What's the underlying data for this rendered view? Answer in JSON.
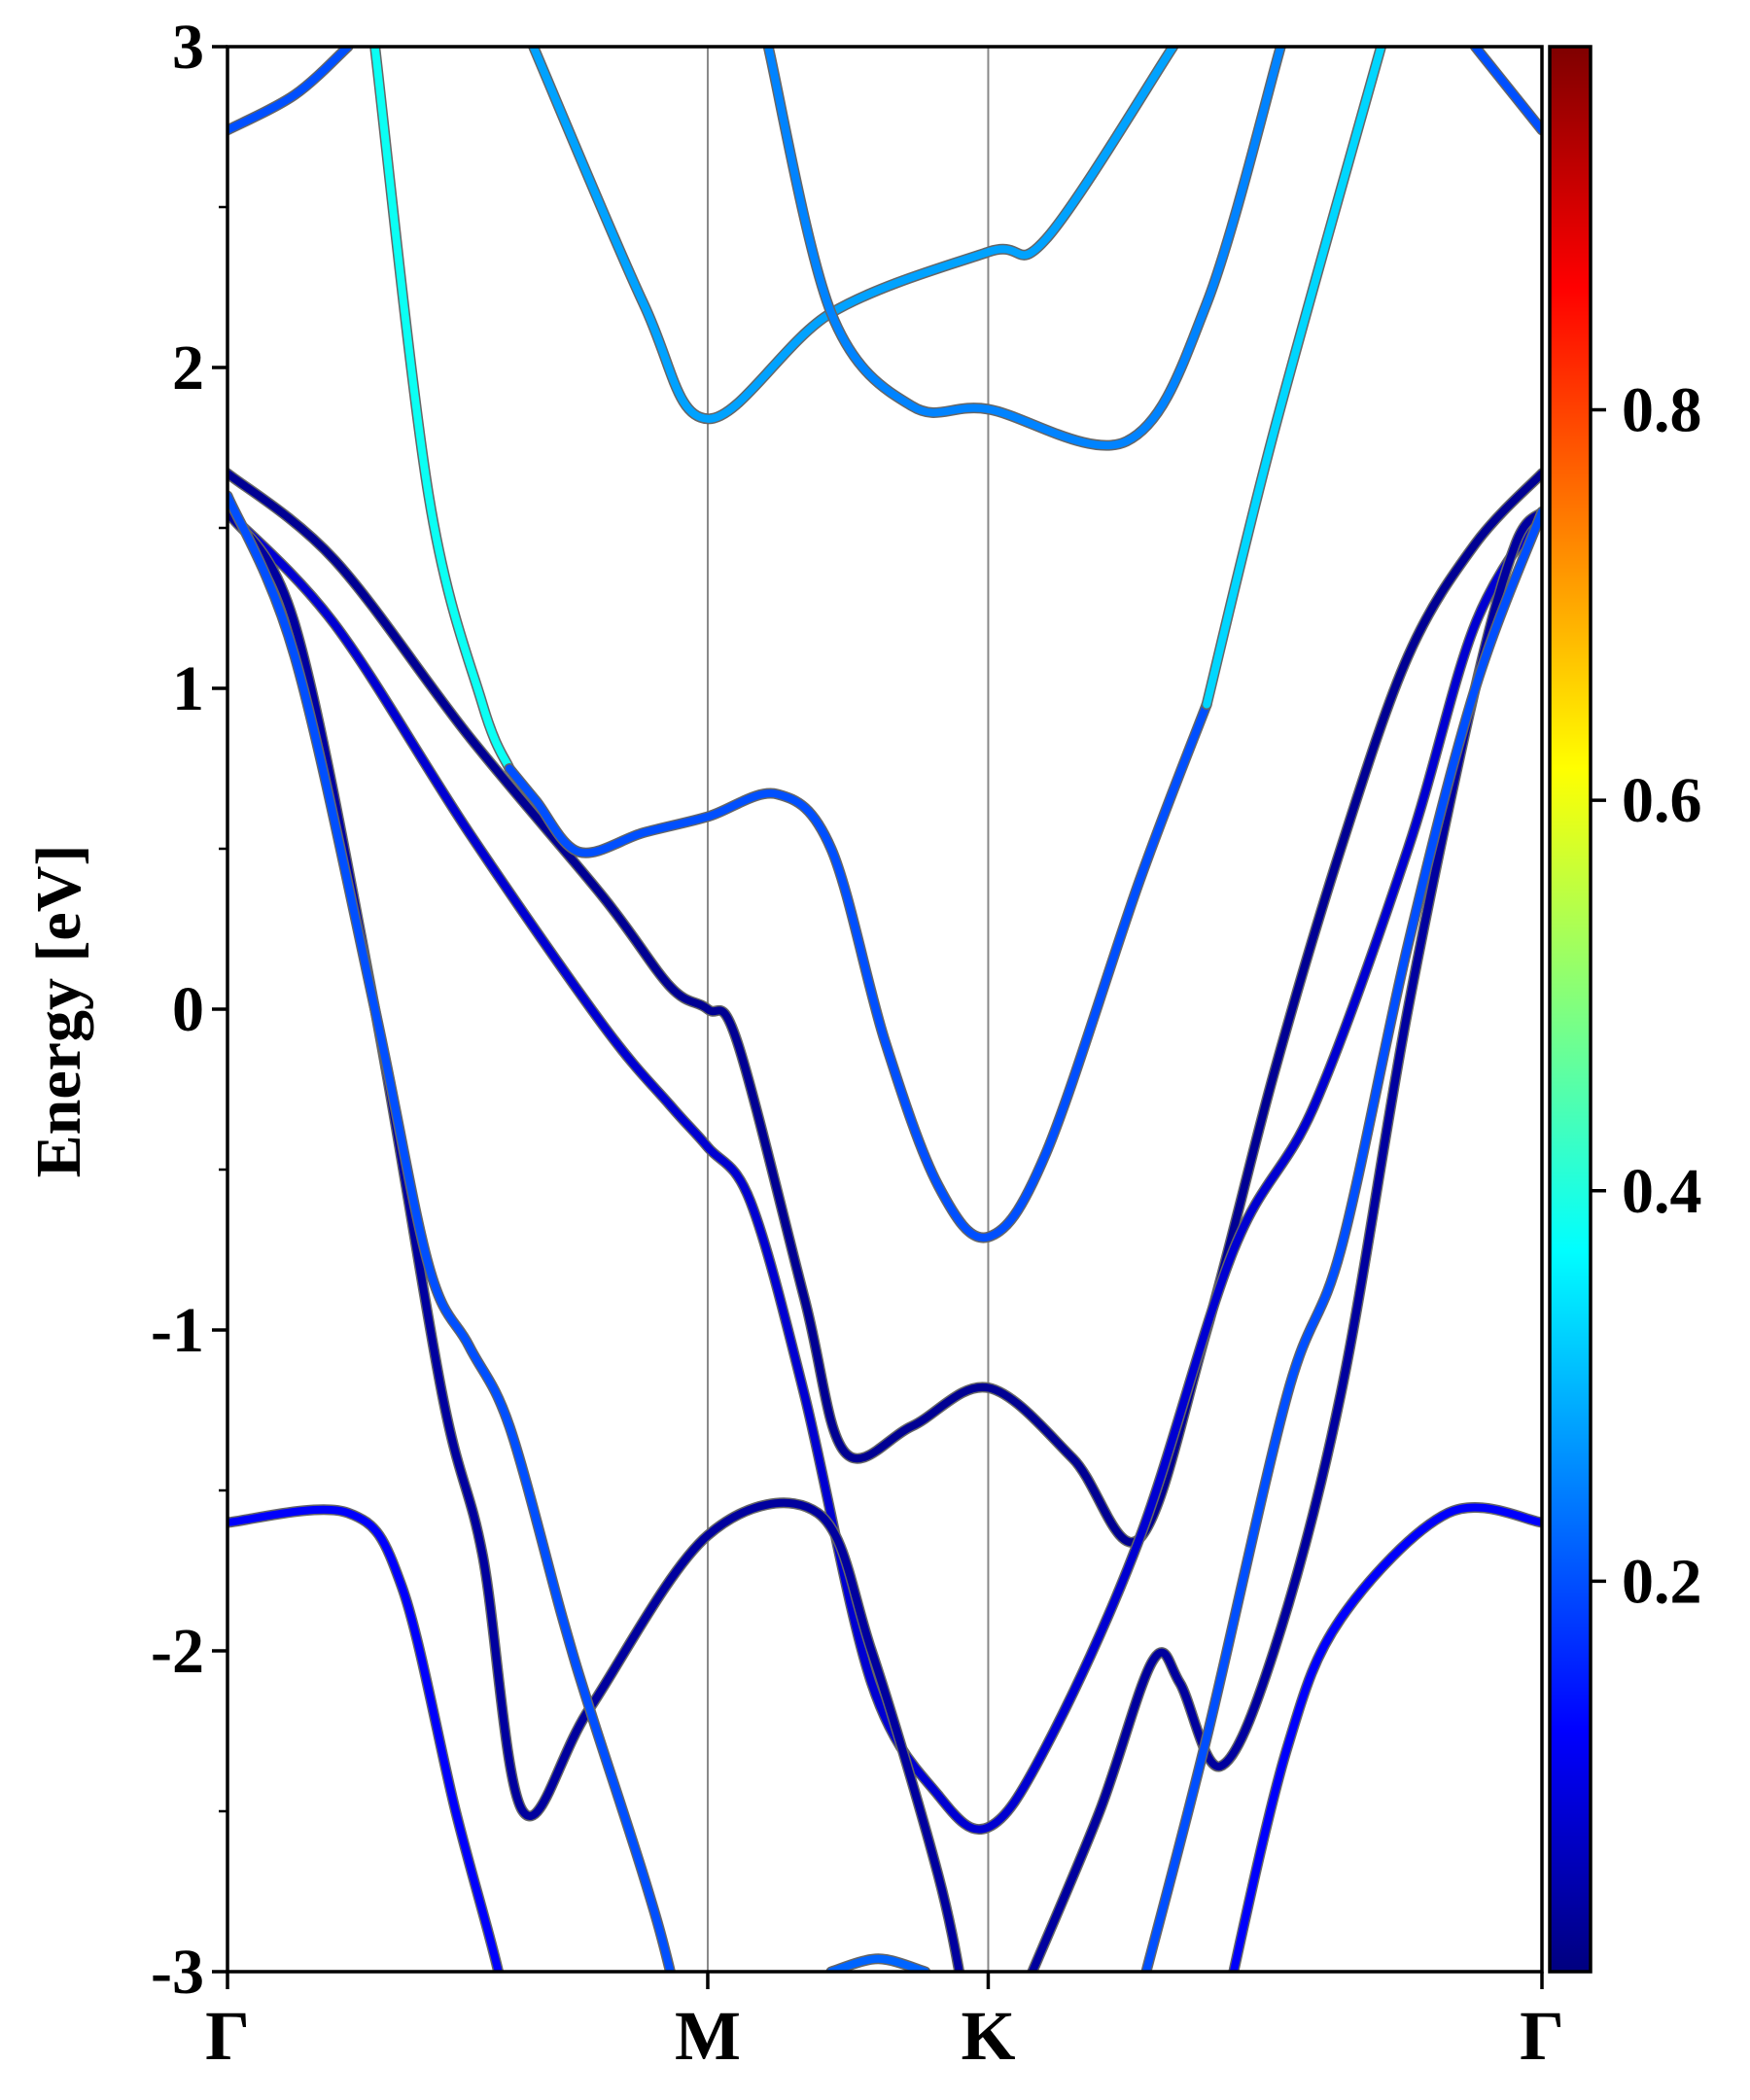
{
  "chart_data": {
    "type": "line",
    "title": "",
    "xlabel": "",
    "ylabel": "Energy [eV]",
    "ylim": [
      -3,
      3
    ],
    "xlim": [
      0,
      2.737
    ],
    "yticks": [
      "3",
      "2",
      "1",
      "0",
      "-1",
      "-2",
      "-3"
    ],
    "ytick_values": [
      3,
      2,
      1,
      0,
      -1,
      -2,
      -3
    ],
    "high_symmetry_points": [
      {
        "label": "Γ",
        "k": 0
      },
      {
        "label": "M",
        "k": 1.0
      },
      {
        "label": "K",
        "k": 1.584
      },
      {
        "label": "Γ",
        "k": 2.737
      }
    ],
    "colorbar": {
      "colormap": "jet",
      "range": [
        0,
        0.986
      ],
      "ticks": [
        "0.2",
        "0.4",
        "0.6",
        "0.8"
      ],
      "tick_values": [
        0.2,
        0.4,
        0.6,
        0.8
      ]
    },
    "series": [
      {
        "name": "band-1",
        "weight": 0.02,
        "points": [
          [
            0,
            1.67
          ],
          [
            0.223,
            1.4
          ],
          [
            0.503,
            0.85
          ],
          [
            0.782,
            0.35
          ],
          [
            0.922,
            0.07
          ],
          [
            1.0,
            0.0
          ],
          [
            1.061,
            -0.1
          ],
          [
            1.201,
            -0.9
          ],
          [
            1.285,
            -1.38
          ],
          [
            1.425,
            -1.3
          ],
          [
            1.584,
            -1.18
          ],
          [
            1.76,
            -1.4
          ],
          [
            1.899,
            -1.65
          ],
          [
            2.039,
            -1.0
          ],
          [
            2.179,
            -0.2
          ],
          [
            2.318,
            0.5
          ],
          [
            2.458,
            1.1
          ],
          [
            2.598,
            1.45
          ],
          [
            2.737,
            1.67
          ]
        ]
      },
      {
        "name": "band-2",
        "weight": 0.08,
        "points": [
          [
            0,
            1.55
          ],
          [
            0.223,
            1.2
          ],
          [
            0.503,
            0.55
          ],
          [
            0.782,
            -0.05
          ],
          [
            0.922,
            -0.3
          ],
          [
            1.0,
            -0.43
          ],
          [
            1.089,
            -0.6
          ],
          [
            1.201,
            -1.2
          ],
          [
            1.341,
            -2.1
          ],
          [
            1.48,
            -2.45
          ],
          [
            1.584,
            -2.55
          ],
          [
            1.704,
            -2.3
          ],
          [
            1.899,
            -1.65
          ],
          [
            2.095,
            -0.75
          ],
          [
            2.263,
            -0.3
          ],
          [
            2.458,
            0.5
          ],
          [
            2.598,
            1.2
          ],
          [
            2.737,
            1.55
          ]
        ]
      },
      {
        "name": "band-3",
        "weight": 0.03,
        "points": [
          [
            0,
            1.55
          ],
          [
            0.14,
            1.2
          ],
          [
            0.307,
            0.0
          ],
          [
            0.447,
            -1.2
          ],
          [
            0.531,
            -1.7
          ],
          [
            0.615,
            -2.5
          ],
          [
            0.754,
            -2.18
          ],
          [
            1.0,
            -1.64
          ],
          [
            1.229,
            -1.57
          ],
          [
            1.341,
            -2.0
          ],
          [
            1.48,
            -2.7
          ],
          [
            1.536,
            -3.1
          ]
        ]
      },
      {
        "name": "band-3b",
        "weight": 0.03,
        "points": [
          [
            1.676,
            -3.0
          ],
          [
            1.816,
            -2.5
          ],
          [
            1.927,
            -2.03
          ],
          [
            1.983,
            -2.1
          ],
          [
            2.067,
            -2.36
          ],
          [
            2.179,
            -2.0
          ],
          [
            2.318,
            -1.2
          ],
          [
            2.458,
            0.0
          ],
          [
            2.598,
            1.0
          ],
          [
            2.682,
            1.45
          ],
          [
            2.737,
            1.55
          ]
        ]
      },
      {
        "name": "band-4",
        "weight": 0.2,
        "points": [
          [
            0,
            1.6
          ],
          [
            0.14,
            1.1
          ],
          [
            0.307,
            0.0
          ],
          [
            0.419,
            -0.8
          ],
          [
            0.503,
            -1.05
          ],
          [
            0.587,
            -1.3
          ],
          [
            0.698,
            -1.9
          ],
          [
            0.754,
            -2.18
          ],
          [
            0.866,
            -2.7
          ],
          [
            0.922,
            -3.0
          ],
          [
            0.98,
            -3.4
          ]
        ]
      },
      {
        "name": "band-4b",
        "weight": 0.2,
        "points": [
          [
            1.913,
            -3.0
          ],
          [
            2.039,
            -2.27
          ],
          [
            2.207,
            -1.2
          ],
          [
            2.318,
            -0.75
          ],
          [
            2.458,
            0.2
          ],
          [
            2.598,
            1.0
          ],
          [
            2.737,
            1.55
          ]
        ]
      },
      {
        "name": "band-5",
        "weight": 0.12,
        "points": [
          [
            0,
            -1.6
          ],
          [
            0.251,
            -1.57
          ],
          [
            0.363,
            -1.8
          ],
          [
            0.475,
            -2.5
          ],
          [
            0.564,
            -3.0
          ],
          [
            0.6,
            -3.3
          ]
        ]
      },
      {
        "name": "band-5b",
        "weight": 0.12,
        "points": [
          [
            2.06,
            -3.3
          ],
          [
            2.095,
            -3.0
          ],
          [
            2.207,
            -2.3
          ],
          [
            2.318,
            -1.9
          ],
          [
            2.542,
            -1.57
          ],
          [
            2.737,
            -1.6
          ]
        ]
      },
      {
        "name": "band-6a",
        "weight": 0.38,
        "points": [
          [
            0.307,
            3.0
          ],
          [
            0.419,
            1.6
          ],
          [
            0.531,
            0.95
          ],
          [
            0.587,
            0.75
          ]
        ]
      },
      {
        "name": "band-6",
        "weight": 0.2,
        "points": [
          [
            0.587,
            0.75
          ],
          [
            0.642,
            0.65
          ],
          [
            0.732,
            0.49
          ],
          [
            0.866,
            0.55
          ],
          [
            1.0,
            0.6
          ],
          [
            1.145,
            0.67
          ],
          [
            1.257,
            0.5
          ],
          [
            1.369,
            -0.1
          ],
          [
            1.48,
            -0.55
          ],
          [
            1.584,
            -0.71
          ],
          [
            1.704,
            -0.45
          ],
          [
            1.899,
            0.4
          ],
          [
            2.039,
            0.95
          ]
        ]
      },
      {
        "name": "band-6b",
        "weight": 0.33,
        "points": [
          [
            2.039,
            0.95
          ],
          [
            2.179,
            1.8
          ],
          [
            2.402,
            3.0
          ]
        ]
      },
      {
        "name": "band-7",
        "weight": 0.28,
        "points": [
          [
            0.637,
            3.0
          ],
          [
            0.866,
            2.2
          ],
          [
            1.0,
            1.84
          ],
          [
            1.257,
            2.17
          ],
          [
            1.584,
            2.36
          ],
          [
            1.704,
            2.4
          ],
          [
            1.969,
            3.0
          ]
        ]
      },
      {
        "name": "band-8",
        "weight": 0.25,
        "points": [
          [
            1.126,
            3.0
          ],
          [
            1.257,
            2.17
          ],
          [
            1.425,
            1.88
          ],
          [
            1.584,
            1.87
          ],
          [
            1.872,
            1.77
          ],
          [
            2.039,
            2.2
          ],
          [
            2.193,
            3.0
          ]
        ]
      },
      {
        "name": "band-9",
        "weight": 0.2,
        "points": [
          [
            0,
            2.74
          ],
          [
            0.14,
            2.85
          ],
          [
            0.251,
            3.0
          ]
        ]
      },
      {
        "name": "band-9b",
        "weight": 0.2,
        "points": [
          [
            2.598,
            3.0
          ],
          [
            2.737,
            2.74
          ]
        ]
      },
      {
        "name": "band-10",
        "weight": 0.22,
        "points": [
          [
            1.257,
            -3.0
          ],
          [
            1.355,
            -2.96
          ],
          [
            1.453,
            -3.0
          ]
        ]
      }
    ]
  }
}
